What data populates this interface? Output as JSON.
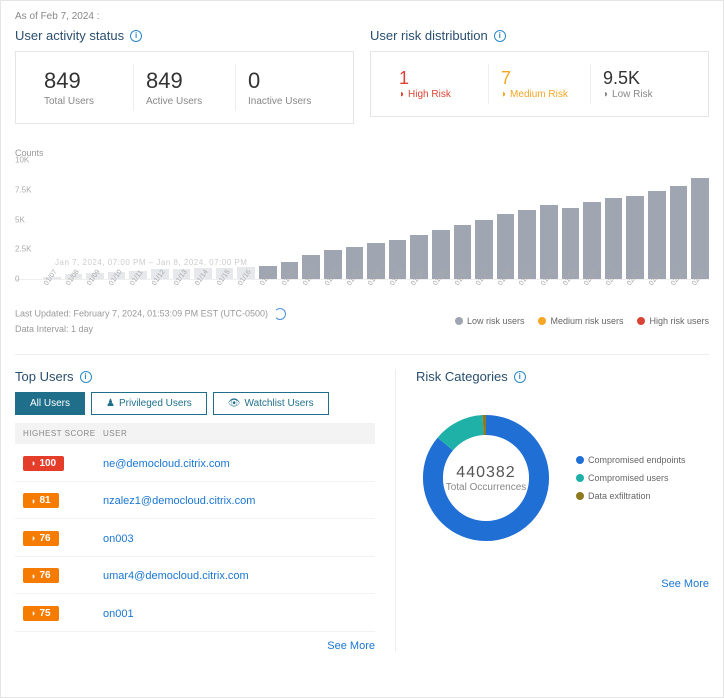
{
  "asOf": "As of Feb 7, 2024 :",
  "activity": {
    "title": "User activity status",
    "total": {
      "value": "849",
      "label": "Total Users"
    },
    "active": {
      "value": "849",
      "label": "Active Users"
    },
    "inactive": {
      "value": "0",
      "label": "Inactive Users"
    }
  },
  "risk": {
    "title": "User risk distribution",
    "high": {
      "value": "1",
      "label": "High Risk",
      "color": "#d94436"
    },
    "medium": {
      "value": "7",
      "label": "Medium Risk",
      "color": "#f5a623"
    },
    "low": {
      "value": "9.5K",
      "label": "Low Risk",
      "color": "#666666"
    }
  },
  "chart": {
    "ylabel": "Counts",
    "yticks": [
      "10K",
      "7.5K",
      "5K",
      "2.5K",
      "0"
    ],
    "watermark": "Jan 7, 2024, 07:00 PM – Jan 8, 2024, 07:00 PM",
    "bars": [
      {
        "label": "01/07",
        "v": 2,
        "faded": true
      },
      {
        "label": "01/08",
        "v": 4,
        "faded": true
      },
      {
        "label": "01/09",
        "v": 5,
        "faded": true
      },
      {
        "label": "01/10",
        "v": 6,
        "faded": true
      },
      {
        "label": "01/11",
        "v": 7,
        "faded": true
      },
      {
        "label": "01/12",
        "v": 8,
        "faded": true
      },
      {
        "label": "01/13",
        "v": 8,
        "faded": true
      },
      {
        "label": "01/14",
        "v": 9,
        "faded": true
      },
      {
        "label": "01/15",
        "v": 9,
        "faded": true
      },
      {
        "label": "01/16",
        "v": 10,
        "faded": true
      },
      {
        "label": "01/17",
        "v": 11,
        "faded": false
      },
      {
        "label": "01/18",
        "v": 14,
        "faded": false
      },
      {
        "label": "01/19",
        "v": 20,
        "faded": false
      },
      {
        "label": "01/20",
        "v": 24,
        "faded": false
      },
      {
        "label": "01/21",
        "v": 27,
        "faded": false
      },
      {
        "label": "01/22",
        "v": 30,
        "faded": false
      },
      {
        "label": "01/23",
        "v": 33,
        "faded": false
      },
      {
        "label": "01/24",
        "v": 37,
        "faded": false
      },
      {
        "label": "01/25",
        "v": 41,
        "faded": false
      },
      {
        "label": "01/26",
        "v": 45,
        "faded": false
      },
      {
        "label": "01/27",
        "v": 50,
        "faded": false
      },
      {
        "label": "01/28",
        "v": 55,
        "faded": false
      },
      {
        "label": "01/29",
        "v": 58,
        "faded": false
      },
      {
        "label": "01/30",
        "v": 62,
        "faded": false
      },
      {
        "label": "01/31",
        "v": 60,
        "faded": false
      },
      {
        "label": "02/01",
        "v": 65,
        "faded": false
      },
      {
        "label": "02/02",
        "v": 68,
        "faded": false
      },
      {
        "label": "02/03",
        "v": 70,
        "faded": false
      },
      {
        "label": "02/04",
        "v": 74,
        "faded": false
      },
      {
        "label": "02/05",
        "v": 78,
        "faded": false
      },
      {
        "label": "02/06",
        "v": 85,
        "faded": false
      }
    ],
    "legend": {
      "low": {
        "label": "Low risk users",
        "color": "#9fa6b2"
      },
      "medium": {
        "label": "Medium risk users",
        "color": "#f5a623"
      },
      "high": {
        "label": "High risk users",
        "color": "#d94436"
      }
    },
    "lastUpdated": "Last Updated: February 7, 2024, 01:53:09 PM EST (UTC-0500)",
    "interval": "Data Interval: 1 day"
  },
  "topUsers": {
    "title": "Top Users",
    "tabs": {
      "all": "All Users",
      "priv": "Privileged Users",
      "watch": "Watchlist Users"
    },
    "cols": {
      "score": "HIGHEST SCORE",
      "user": "USER"
    },
    "rows": [
      {
        "score": "100",
        "cls": "red",
        "user": "ne@democloud.citrix.com"
      },
      {
        "score": "81",
        "cls": "orange",
        "user": "nzalez1@democloud.citrix.com"
      },
      {
        "score": "76",
        "cls": "orange",
        "user": "on003"
      },
      {
        "score": "76",
        "cls": "orange",
        "user": "umar4@democloud.citrix.com"
      },
      {
        "score": "75",
        "cls": "orange",
        "user": "on001"
      }
    ],
    "seeMore": "See More"
  },
  "riskCats": {
    "title": "Risk Categories",
    "total": "440382",
    "totalLabel": "Total Occurrences",
    "seeMore": "See More",
    "slices": [
      {
        "label": "Compromised endpoints",
        "color": "#1f6fd4",
        "frac": 0.86
      },
      {
        "label": "Compromised users",
        "color": "#1fb0a8",
        "frac": 0.13
      },
      {
        "label": "Data exfiltration",
        "color": "#8e7a1f",
        "frac": 0.01
      }
    ]
  }
}
